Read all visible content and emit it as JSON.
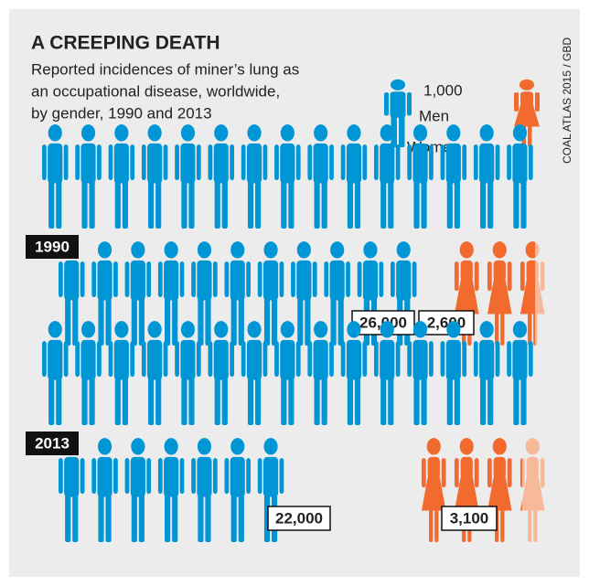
{
  "chart_data": {
    "type": "pictogram",
    "title": "A CREEPING DEATH",
    "subtitle": [
      "Reported incidences of miner’s lung as",
      "an occupational disease, worldwide,",
      "by gender, 1990 and 2013"
    ],
    "unit": {
      "value": 1000,
      "label": "1,000"
    },
    "categories": [
      "1990",
      "2013"
    ],
    "series": [
      {
        "name": "Men",
        "color": "#0096d6",
        "faded_color": "#8fcbe9",
        "values": [
          26000,
          22000
        ],
        "value_labels": [
          "26,000",
          "22,000"
        ]
      },
      {
        "name": "Women",
        "color": "#f26a2e",
        "faded_color": "#f7b99a",
        "values": [
          2600,
          3100
        ],
        "value_labels": [
          "2,600",
          "3,100"
        ]
      }
    ],
    "source": "COAL ATLAS 2015 / GBD"
  }
}
